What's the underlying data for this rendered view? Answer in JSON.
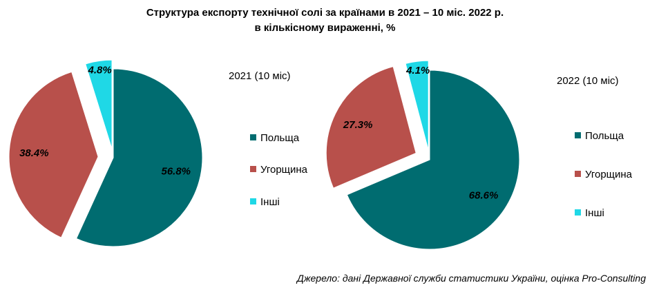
{
  "title": {
    "line1": "Структура  експорту технічної солі за країнами в 2021 – 10 міс. 2022 р.",
    "line2": "в кількісному вираженні, %"
  },
  "colors": {
    "poland": "#006c70",
    "hungary": "#b8504b",
    "others": "#1fd8e6"
  },
  "chart_data": [
    {
      "type": "pie",
      "title": "2021 (10 міс)",
      "categories": [
        "Польща",
        "Угорщина",
        "Інші"
      ],
      "values": [
        56.8,
        38.4,
        4.8
      ],
      "data_labels": [
        "56.8%",
        "38.4%",
        "4.8%"
      ],
      "legend_position": "right"
    },
    {
      "type": "pie",
      "title": "2022 (10 міс)",
      "categories": [
        "Польща",
        "Угорщина",
        "Інші"
      ],
      "values": [
        68.6,
        27.3,
        4.1
      ],
      "data_labels": [
        "68.6%",
        "27.3%",
        "4.1%"
      ],
      "legend_position": "right"
    }
  ],
  "source": "Джерело: дані Державної служби статистики України, оцінка Pro-Consulting"
}
